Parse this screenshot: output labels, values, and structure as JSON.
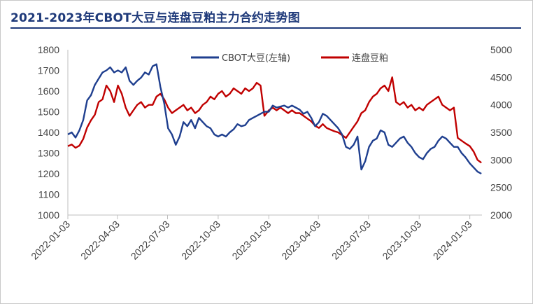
{
  "chart_data": {
    "type": "line",
    "title": "2021-2023年CBOT大豆与连盘豆粕主力合约走势图",
    "x_tick_labels": [
      "2022-01-03",
      "2022-04-03",
      "2022-07-03",
      "2022-10-03",
      "2023-01-03",
      "2023-04-03",
      "2023-07-03",
      "2023-10-03",
      "2024-01-03"
    ],
    "x_range": [
      "2022-01-03",
      "2024-01-25"
    ],
    "y_left": {
      "ylim": [
        1000,
        1800
      ],
      "ticks": [
        "1000",
        "1100",
        "1200",
        "1300",
        "1400",
        "1500",
        "1600",
        "1700",
        "1800"
      ]
    },
    "y_right": {
      "ylim": [
        2000,
        5000
      ],
      "ticks": [
        "2000",
        "2500",
        "3000",
        "3500",
        "4000",
        "4500",
        "5000"
      ]
    },
    "legend_position": "top",
    "series": [
      {
        "name": "CBOT大豆(左轴)",
        "axis": "left",
        "color": "#1f3f8f",
        "points": [
          [
            "2022-01-03",
            1390
          ],
          [
            "2022-01-10",
            1400
          ],
          [
            "2022-01-17",
            1375
          ],
          [
            "2022-01-24",
            1410
          ],
          [
            "2022-01-31",
            1460
          ],
          [
            "2022-02-07",
            1555
          ],
          [
            "2022-02-14",
            1580
          ],
          [
            "2022-02-21",
            1630
          ],
          [
            "2022-02-28",
            1660
          ],
          [
            "2022-03-07",
            1690
          ],
          [
            "2022-03-14",
            1700
          ],
          [
            "2022-03-21",
            1715
          ],
          [
            "2022-03-28",
            1690
          ],
          [
            "2022-04-04",
            1700
          ],
          [
            "2022-04-11",
            1690
          ],
          [
            "2022-04-18",
            1715
          ],
          [
            "2022-04-25",
            1650
          ],
          [
            "2022-05-02",
            1630
          ],
          [
            "2022-05-09",
            1650
          ],
          [
            "2022-05-16",
            1665
          ],
          [
            "2022-05-23",
            1690
          ],
          [
            "2022-05-30",
            1680
          ],
          [
            "2022-06-06",
            1720
          ],
          [
            "2022-06-13",
            1730
          ],
          [
            "2022-06-20",
            1620
          ],
          [
            "2022-06-27",
            1540
          ],
          [
            "2022-07-04",
            1420
          ],
          [
            "2022-07-11",
            1390
          ],
          [
            "2022-07-18",
            1340
          ],
          [
            "2022-07-25",
            1380
          ],
          [
            "2022-08-01",
            1450
          ],
          [
            "2022-08-08",
            1430
          ],
          [
            "2022-08-15",
            1460
          ],
          [
            "2022-08-22",
            1420
          ],
          [
            "2022-08-29",
            1470
          ],
          [
            "2022-09-05",
            1450
          ],
          [
            "2022-09-12",
            1430
          ],
          [
            "2022-09-19",
            1420
          ],
          [
            "2022-09-26",
            1390
          ],
          [
            "2022-10-03",
            1380
          ],
          [
            "2022-10-10",
            1390
          ],
          [
            "2022-10-17",
            1380
          ],
          [
            "2022-10-24",
            1400
          ],
          [
            "2022-10-31",
            1415
          ],
          [
            "2022-11-07",
            1440
          ],
          [
            "2022-11-14",
            1430
          ],
          [
            "2022-11-21",
            1435
          ],
          [
            "2022-11-28",
            1460
          ],
          [
            "2022-12-05",
            1470
          ],
          [
            "2022-12-12",
            1480
          ],
          [
            "2022-12-19",
            1490
          ],
          [
            "2022-12-26",
            1500
          ],
          [
            "2023-01-03",
            1500
          ],
          [
            "2023-01-10",
            1530
          ],
          [
            "2023-01-17",
            1520
          ],
          [
            "2023-01-24",
            1525
          ],
          [
            "2023-01-31",
            1530
          ],
          [
            "2023-02-07",
            1520
          ],
          [
            "2023-02-14",
            1530
          ],
          [
            "2023-02-21",
            1520
          ],
          [
            "2023-02-28",
            1510
          ],
          [
            "2023-03-07",
            1490
          ],
          [
            "2023-03-14",
            1500
          ],
          [
            "2023-03-21",
            1470
          ],
          [
            "2023-03-28",
            1430
          ],
          [
            "2023-04-04",
            1450
          ],
          [
            "2023-04-11",
            1490
          ],
          [
            "2023-04-18",
            1480
          ],
          [
            "2023-04-25",
            1460
          ],
          [
            "2023-05-02",
            1440
          ],
          [
            "2023-05-09",
            1420
          ],
          [
            "2023-05-16",
            1390
          ],
          [
            "2023-05-23",
            1330
          ],
          [
            "2023-05-30",
            1320
          ],
          [
            "2023-06-06",
            1340
          ],
          [
            "2023-06-13",
            1380
          ],
          [
            "2023-06-20",
            1220
          ],
          [
            "2023-06-27",
            1260
          ],
          [
            "2023-07-04",
            1330
          ],
          [
            "2023-07-11",
            1360
          ],
          [
            "2023-07-18",
            1370
          ],
          [
            "2023-07-25",
            1410
          ],
          [
            "2023-08-01",
            1400
          ],
          [
            "2023-08-08",
            1340
          ],
          [
            "2023-08-15",
            1330
          ],
          [
            "2023-08-22",
            1350
          ],
          [
            "2023-08-29",
            1370
          ],
          [
            "2023-09-05",
            1380
          ],
          [
            "2023-09-12",
            1350
          ],
          [
            "2023-09-19",
            1330
          ],
          [
            "2023-09-26",
            1300
          ],
          [
            "2023-10-03",
            1280
          ],
          [
            "2023-10-10",
            1270
          ],
          [
            "2023-10-17",
            1300
          ],
          [
            "2023-10-24",
            1320
          ],
          [
            "2023-10-31",
            1330
          ],
          [
            "2023-11-07",
            1360
          ],
          [
            "2023-11-14",
            1380
          ],
          [
            "2023-11-21",
            1370
          ],
          [
            "2023-11-28",
            1350
          ],
          [
            "2023-12-05",
            1330
          ],
          [
            "2023-12-12",
            1330
          ],
          [
            "2023-12-19",
            1300
          ],
          [
            "2023-12-26",
            1280
          ],
          [
            "2024-01-03",
            1250
          ],
          [
            "2024-01-10",
            1230
          ],
          [
            "2024-01-17",
            1210
          ],
          [
            "2024-01-24",
            1200
          ]
        ]
      },
      {
        "name": "连盘豆粕",
        "axis": "right",
        "color": "#c00000",
        "points": [
          [
            "2022-01-03",
            3250
          ],
          [
            "2022-01-10",
            3280
          ],
          [
            "2022-01-17",
            3220
          ],
          [
            "2022-01-24",
            3260
          ],
          [
            "2022-01-31",
            3380
          ],
          [
            "2022-02-07",
            3590
          ],
          [
            "2022-02-14",
            3720
          ],
          [
            "2022-02-21",
            3820
          ],
          [
            "2022-02-28",
            4050
          ],
          [
            "2022-03-07",
            4100
          ],
          [
            "2022-03-14",
            4350
          ],
          [
            "2022-03-21",
            4250
          ],
          [
            "2022-03-28",
            4050
          ],
          [
            "2022-04-04",
            4350
          ],
          [
            "2022-04-11",
            4200
          ],
          [
            "2022-04-18",
            3950
          ],
          [
            "2022-04-25",
            3800
          ],
          [
            "2022-05-02",
            3900
          ],
          [
            "2022-05-09",
            4000
          ],
          [
            "2022-05-16",
            4050
          ],
          [
            "2022-05-23",
            3950
          ],
          [
            "2022-05-30",
            4000
          ],
          [
            "2022-06-06",
            4000
          ],
          [
            "2022-06-13",
            4150
          ],
          [
            "2022-06-20",
            4200
          ],
          [
            "2022-06-27",
            4100
          ],
          [
            "2022-07-04",
            3950
          ],
          [
            "2022-07-11",
            3850
          ],
          [
            "2022-07-18",
            3900
          ],
          [
            "2022-07-25",
            3950
          ],
          [
            "2022-08-01",
            4000
          ],
          [
            "2022-08-08",
            3900
          ],
          [
            "2022-08-15",
            3950
          ],
          [
            "2022-08-22",
            3850
          ],
          [
            "2022-08-29",
            3900
          ],
          [
            "2022-09-05",
            4000
          ],
          [
            "2022-09-12",
            4050
          ],
          [
            "2022-09-19",
            4150
          ],
          [
            "2022-09-26",
            4100
          ],
          [
            "2022-10-03",
            4200
          ],
          [
            "2022-10-10",
            4250
          ],
          [
            "2022-10-17",
            4150
          ],
          [
            "2022-10-24",
            4200
          ],
          [
            "2022-10-31",
            4300
          ],
          [
            "2022-11-07",
            4250
          ],
          [
            "2022-11-14",
            4200
          ],
          [
            "2022-11-21",
            4300
          ],
          [
            "2022-11-28",
            4250
          ],
          [
            "2022-12-05",
            4300
          ],
          [
            "2022-12-12",
            4400
          ],
          [
            "2022-12-19",
            4350
          ],
          [
            "2022-12-26",
            3800
          ],
          [
            "2023-01-03",
            3900
          ],
          [
            "2023-01-10",
            3950
          ],
          [
            "2023-01-17",
            3900
          ],
          [
            "2023-01-24",
            3950
          ],
          [
            "2023-01-31",
            3900
          ],
          [
            "2023-02-07",
            3850
          ],
          [
            "2023-02-14",
            3900
          ],
          [
            "2023-02-21",
            3850
          ],
          [
            "2023-02-28",
            3850
          ],
          [
            "2023-03-07",
            3800
          ],
          [
            "2023-03-14",
            3750
          ],
          [
            "2023-03-21",
            3700
          ],
          [
            "2023-03-28",
            3620
          ],
          [
            "2023-04-04",
            3580
          ],
          [
            "2023-04-11",
            3650
          ],
          [
            "2023-04-18",
            3580
          ],
          [
            "2023-04-25",
            3550
          ],
          [
            "2023-05-02",
            3520
          ],
          [
            "2023-05-09",
            3500
          ],
          [
            "2023-05-16",
            3450
          ],
          [
            "2023-05-23",
            3400
          ],
          [
            "2023-05-30",
            3500
          ],
          [
            "2023-06-06",
            3600
          ],
          [
            "2023-06-13",
            3700
          ],
          [
            "2023-06-20",
            3850
          ],
          [
            "2023-06-27",
            3900
          ],
          [
            "2023-07-04",
            4050
          ],
          [
            "2023-07-11",
            4150
          ],
          [
            "2023-07-18",
            4200
          ],
          [
            "2023-07-25",
            4300
          ],
          [
            "2023-08-01",
            4350
          ],
          [
            "2023-08-08",
            4250
          ],
          [
            "2023-08-15",
            4500
          ],
          [
            "2023-08-22",
            4050
          ],
          [
            "2023-08-29",
            4000
          ],
          [
            "2023-09-05",
            4050
          ],
          [
            "2023-09-12",
            3950
          ],
          [
            "2023-09-19",
            4000
          ],
          [
            "2023-09-26",
            3900
          ],
          [
            "2023-10-03",
            3950
          ],
          [
            "2023-10-10",
            3900
          ],
          [
            "2023-10-17",
            4000
          ],
          [
            "2023-10-24",
            4050
          ],
          [
            "2023-10-31",
            4100
          ],
          [
            "2023-11-07",
            4150
          ],
          [
            "2023-11-14",
            4000
          ],
          [
            "2023-11-21",
            3950
          ],
          [
            "2023-11-28",
            3900
          ],
          [
            "2023-12-05",
            3950
          ],
          [
            "2023-12-12",
            3400
          ],
          [
            "2023-12-19",
            3350
          ],
          [
            "2023-12-26",
            3300
          ],
          [
            "2024-01-03",
            3250
          ],
          [
            "2024-01-10",
            3150
          ],
          [
            "2024-01-17",
            3000
          ],
          [
            "2024-01-24",
            2950
          ]
        ]
      }
    ]
  }
}
